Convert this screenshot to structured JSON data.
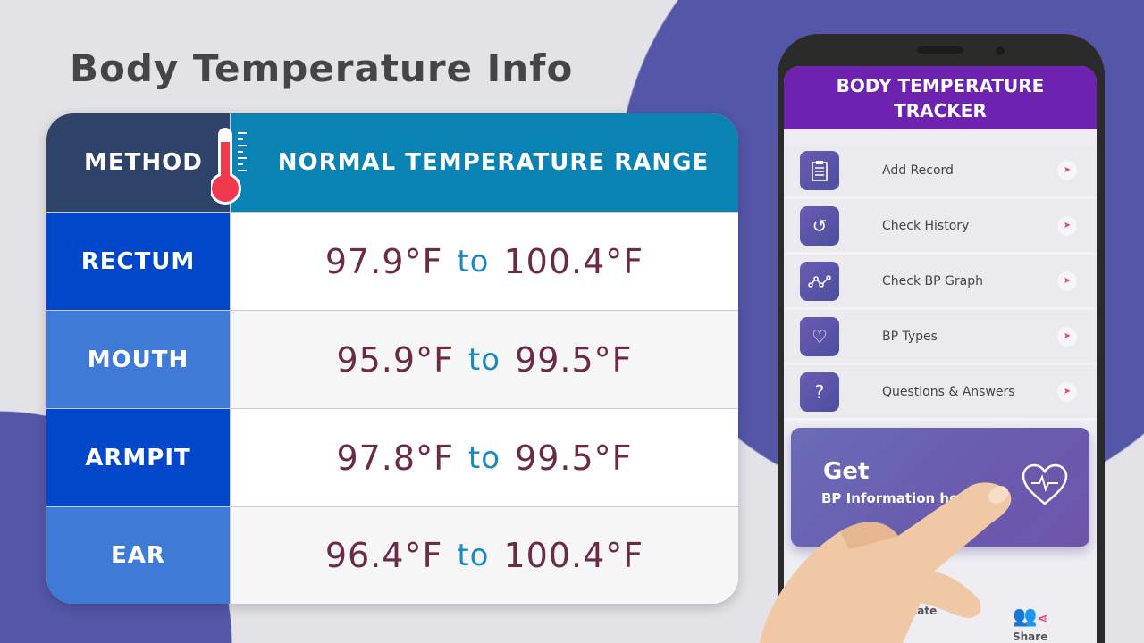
{
  "title": "Body Temperature Info",
  "colors": {
    "background": "#e3e3e7",
    "accent_purple": "#5457a8",
    "header_dark": "#2f4269",
    "header_blue": "#0a82b4",
    "row_dark": "#0047c9",
    "row_light": "#3f7bd6",
    "value": "#6b2a45",
    "to": "#1b88c0",
    "app_header": "#6e22b0"
  },
  "table": {
    "headers": {
      "method": "METHOD",
      "range": "NORMAL TEMPERATURE RANGE",
      "icon": "thermometer-icon"
    },
    "rows": [
      {
        "method": "RECTUM",
        "from": "97.9°F",
        "to_word": "to",
        "to": "100.4°F"
      },
      {
        "method": "MOUTH",
        "from": "95.9°F",
        "to_word": "to",
        "to": "99.5°F"
      },
      {
        "method": "ARMPIT",
        "from": "97.8°F",
        "to_word": "to",
        "to": "99.5°F"
      },
      {
        "method": "EAR",
        "from": "96.4°F",
        "to_word": "to",
        "to": "100.4°F"
      }
    ]
  },
  "app": {
    "title_line1": "BODY TEMPERATURE",
    "title_line2": "TRACKER",
    "menu": [
      {
        "label": "Add Record",
        "icon": "clipboard-icon"
      },
      {
        "label": "Check History",
        "icon": "history-icon"
      },
      {
        "label": "Check BP Graph",
        "icon": "graph-icon"
      },
      {
        "label": "BP Types",
        "icon": "heart-pulse-icon"
      },
      {
        "label": "Questions & Answers",
        "icon": "question-icon"
      }
    ],
    "banner": {
      "heading": "Get",
      "sub": "BP Information here",
      "icon": "heart-pulse-icon"
    },
    "nav": [
      {
        "label": "Rate",
        "icon": "star-icon"
      },
      {
        "label": "Share",
        "icon": "share-icon"
      }
    ]
  }
}
